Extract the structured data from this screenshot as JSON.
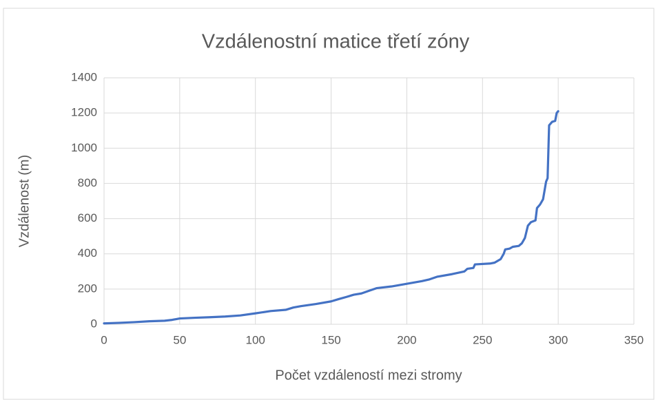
{
  "chart_data": {
    "type": "line",
    "title": "Vzdálenostní matice třetí zóny",
    "x_label": "Počet vzdáleností mezi stromy",
    "y_label": "Vzdálenost (m)",
    "series": [
      {
        "name": "Vzdálenost",
        "color": "#4472c4",
        "x": [
          0,
          10,
          20,
          30,
          40,
          45,
          50,
          60,
          70,
          80,
          90,
          100,
          110,
          120,
          125,
          130,
          140,
          150,
          155,
          160,
          165,
          170,
          175,
          180,
          190,
          200,
          210,
          215,
          220,
          230,
          238,
          240,
          244,
          245,
          255,
          258,
          262,
          264,
          265,
          268,
          270,
          274,
          276,
          278,
          280,
          282,
          285,
          286,
          288,
          290,
          292,
          293,
          294,
          296,
          298,
          299,
          300
        ],
        "values": [
          5,
          8,
          12,
          17,
          20,
          25,
          33,
          37,
          40,
          44,
          50,
          62,
          75,
          82,
          95,
          103,
          115,
          130,
          143,
          155,
          168,
          175,
          190,
          205,
          215,
          230,
          245,
          255,
          270,
          285,
          300,
          315,
          320,
          340,
          345,
          350,
          370,
          400,
          425,
          430,
          440,
          445,
          460,
          490,
          560,
          580,
          590,
          660,
          680,
          710,
          810,
          830,
          1130,
          1150,
          1155,
          1200,
          1210
        ]
      }
    ],
    "xlim": [
      0,
      350
    ],
    "xticks": [
      0,
      50,
      100,
      150,
      200,
      250,
      300,
      350
    ],
    "ylim": [
      0,
      1400
    ],
    "yticks": [
      0,
      200,
      400,
      600,
      800,
      1000,
      1200,
      1400
    ],
    "grid": true
  }
}
